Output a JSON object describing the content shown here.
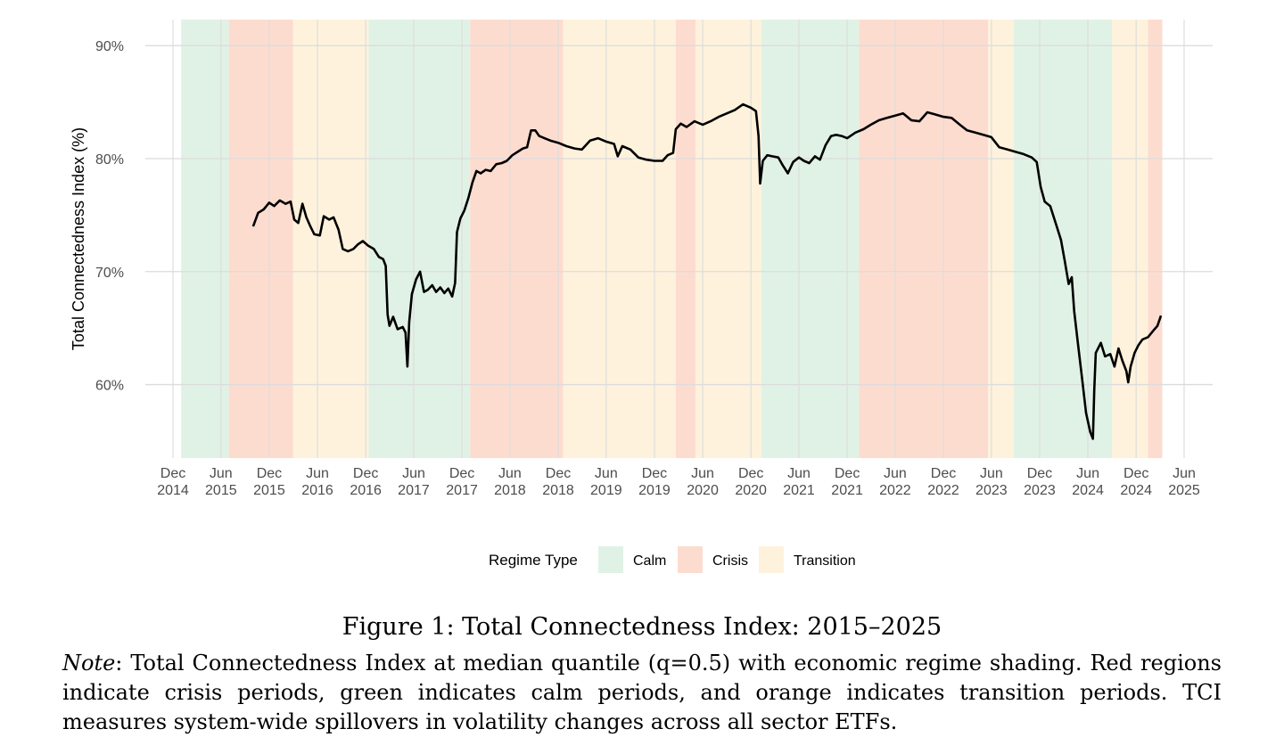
{
  "chart_data": {
    "type": "line",
    "title": "",
    "xlabel": "",
    "ylabel": "Total Connectedness Index (%)",
    "ylim": [
      53.5,
      92.3
    ],
    "x_range": [
      "2014-12-01",
      "2025-06-01"
    ],
    "y_ticks": [
      {
        "value": 60,
        "label": "60%"
      },
      {
        "value": 70,
        "label": "70%"
      },
      {
        "value": 80,
        "label": "80%"
      },
      {
        "value": 90,
        "label": "90%"
      }
    ],
    "x_ticks": [
      {
        "date": "2014-12-01",
        "line1": "Dec",
        "line2": "2014"
      },
      {
        "date": "2015-06-01",
        "line1": "Jun",
        "line2": "2015"
      },
      {
        "date": "2015-12-01",
        "line1": "Dec",
        "line2": "2015"
      },
      {
        "date": "2016-06-01",
        "line1": "Jun",
        "line2": "2016"
      },
      {
        "date": "2016-12-01",
        "line1": "Dec",
        "line2": "2016"
      },
      {
        "date": "2017-06-01",
        "line1": "Jun",
        "line2": "2017"
      },
      {
        "date": "2017-12-01",
        "line1": "Dec",
        "line2": "2017"
      },
      {
        "date": "2018-06-01",
        "line1": "Jun",
        "line2": "2018"
      },
      {
        "date": "2018-12-01",
        "line1": "Dec",
        "line2": "2018"
      },
      {
        "date": "2019-06-01",
        "line1": "Jun",
        "line2": "2019"
      },
      {
        "date": "2019-12-01",
        "line1": "Dec",
        "line2": "2019"
      },
      {
        "date": "2020-06-01",
        "line1": "Jun",
        "line2": "2020"
      },
      {
        "date": "2020-12-01",
        "line1": "Dec",
        "line2": "2020"
      },
      {
        "date": "2021-06-01",
        "line1": "Jun",
        "line2": "2021"
      },
      {
        "date": "2021-12-01",
        "line1": "Dec",
        "line2": "2021"
      },
      {
        "date": "2022-06-01",
        "line1": "Jun",
        "line2": "2022"
      },
      {
        "date": "2022-12-01",
        "line1": "Dec",
        "line2": "2022"
      },
      {
        "date": "2023-06-01",
        "line1": "Jun",
        "line2": "2023"
      },
      {
        "date": "2023-12-01",
        "line1": "Dec",
        "line2": "2023"
      },
      {
        "date": "2024-06-01",
        "line1": "Jun",
        "line2": "2024"
      },
      {
        "date": "2024-12-01",
        "line1": "Dec",
        "line2": "2024"
      },
      {
        "date": "2025-06-01",
        "line1": "Jun",
        "line2": "2025"
      }
    ],
    "grid": true,
    "regime_colors": {
      "Calm": "#e0f2e5",
      "Crisis": "#fddcd0",
      "Transition": "#fef2dc"
    },
    "regimes": [
      {
        "type": "Calm",
        "start": "2015-01-01",
        "end": "2015-07-01"
      },
      {
        "type": "Crisis",
        "start": "2015-07-01",
        "end": "2016-03-01"
      },
      {
        "type": "Transition",
        "start": "2016-03-01",
        "end": "2016-12-12"
      },
      {
        "type": "Calm",
        "start": "2016-12-12",
        "end": "2018-01-01"
      },
      {
        "type": "Crisis",
        "start": "2018-01-01",
        "end": "2018-12-20"
      },
      {
        "type": "Transition",
        "start": "2018-12-20",
        "end": "2020-02-20"
      },
      {
        "type": "Crisis",
        "start": "2020-02-20",
        "end": "2020-05-05"
      },
      {
        "type": "Transition",
        "start": "2020-05-05",
        "end": "2021-01-10"
      },
      {
        "type": "Calm",
        "start": "2021-01-10",
        "end": "2022-01-15"
      },
      {
        "type": "Crisis",
        "start": "2022-01-15",
        "end": "2023-05-20"
      },
      {
        "type": "Transition",
        "start": "2023-05-20",
        "end": "2023-08-25"
      },
      {
        "type": "Calm",
        "start": "2023-08-25",
        "end": "2024-09-01"
      },
      {
        "type": "Transition",
        "start": "2024-09-01",
        "end": "2025-01-15"
      },
      {
        "type": "Crisis",
        "start": "2025-01-15",
        "end": "2025-03-10"
      }
    ],
    "series": [
      {
        "name": "TCI",
        "color": "#000000",
        "points": [
          [
            "2015-10-01",
            74.0
          ],
          [
            "2015-10-20",
            75.2
          ],
          [
            "2015-11-10",
            75.5
          ],
          [
            "2015-12-01",
            76.1
          ],
          [
            "2015-12-20",
            75.8
          ],
          [
            "2016-01-10",
            76.3
          ],
          [
            "2016-02-01",
            76.0
          ],
          [
            "2016-02-20",
            76.2
          ],
          [
            "2016-03-05",
            74.6
          ],
          [
            "2016-03-20",
            74.3
          ],
          [
            "2016-04-05",
            76.0
          ],
          [
            "2016-04-20",
            74.8
          ],
          [
            "2016-05-05",
            74.0
          ],
          [
            "2016-05-20",
            73.3
          ],
          [
            "2016-06-10",
            73.2
          ],
          [
            "2016-06-25",
            74.9
          ],
          [
            "2016-07-15",
            74.6
          ],
          [
            "2016-08-01",
            74.8
          ],
          [
            "2016-08-20",
            73.7
          ],
          [
            "2016-09-05",
            72.0
          ],
          [
            "2016-09-25",
            71.8
          ],
          [
            "2016-10-15",
            72.0
          ],
          [
            "2016-11-01",
            72.4
          ],
          [
            "2016-11-20",
            72.7
          ],
          [
            "2016-12-10",
            72.3
          ],
          [
            "2017-01-01",
            72.0
          ],
          [
            "2017-01-20",
            71.3
          ],
          [
            "2017-02-05",
            71.1
          ],
          [
            "2017-02-15",
            70.5
          ],
          [
            "2017-02-22",
            66.2
          ],
          [
            "2017-03-01",
            65.2
          ],
          [
            "2017-03-15",
            66.0
          ],
          [
            "2017-04-01",
            64.9
          ],
          [
            "2017-04-20",
            65.1
          ],
          [
            "2017-05-01",
            64.6
          ],
          [
            "2017-05-08",
            61.6
          ],
          [
            "2017-05-15",
            65.5
          ],
          [
            "2017-05-25",
            68.0
          ],
          [
            "2017-06-10",
            69.3
          ],
          [
            "2017-06-25",
            70.0
          ],
          [
            "2017-07-10",
            68.2
          ],
          [
            "2017-07-25",
            68.4
          ],
          [
            "2017-08-10",
            68.8
          ],
          [
            "2017-08-25",
            68.2
          ],
          [
            "2017-09-10",
            68.6
          ],
          [
            "2017-09-25",
            68.1
          ],
          [
            "2017-10-10",
            68.5
          ],
          [
            "2017-10-25",
            67.8
          ],
          [
            "2017-11-05",
            69.0
          ],
          [
            "2017-11-12",
            73.5
          ],
          [
            "2017-11-25",
            74.7
          ],
          [
            "2017-12-10",
            75.4
          ],
          [
            "2017-12-25",
            76.5
          ],
          [
            "2018-01-10",
            77.9
          ],
          [
            "2018-01-25",
            78.9
          ],
          [
            "2018-02-10",
            78.7
          ],
          [
            "2018-03-01",
            79.0
          ],
          [
            "2018-03-20",
            78.9
          ],
          [
            "2018-04-10",
            79.5
          ],
          [
            "2018-05-01",
            79.6
          ],
          [
            "2018-05-20",
            79.8
          ],
          [
            "2018-06-10",
            80.3
          ],
          [
            "2018-06-30",
            80.6
          ],
          [
            "2018-07-20",
            80.9
          ],
          [
            "2018-08-05",
            81.0
          ],
          [
            "2018-08-20",
            82.5
          ],
          [
            "2018-09-05",
            82.5
          ],
          [
            "2018-09-20",
            82.0
          ],
          [
            "2018-10-10",
            81.8
          ],
          [
            "2018-11-01",
            81.6
          ],
          [
            "2018-12-01",
            81.4
          ],
          [
            "2019-01-01",
            81.1
          ],
          [
            "2019-02-01",
            80.9
          ],
          [
            "2019-03-01",
            80.8
          ],
          [
            "2019-04-01",
            81.6
          ],
          [
            "2019-05-01",
            81.8
          ],
          [
            "2019-06-01",
            81.5
          ],
          [
            "2019-07-01",
            81.3
          ],
          [
            "2019-07-15",
            80.2
          ],
          [
            "2019-08-01",
            81.1
          ],
          [
            "2019-09-01",
            80.8
          ],
          [
            "2019-10-01",
            80.1
          ],
          [
            "2019-11-01",
            79.9
          ],
          [
            "2019-12-01",
            79.8
          ],
          [
            "2020-01-01",
            79.8
          ],
          [
            "2020-01-20",
            80.3
          ],
          [
            "2020-02-10",
            80.5
          ],
          [
            "2020-02-20",
            82.6
          ],
          [
            "2020-03-10",
            83.1
          ],
          [
            "2020-04-01",
            82.8
          ],
          [
            "2020-05-01",
            83.3
          ],
          [
            "2020-06-01",
            83.0
          ],
          [
            "2020-07-01",
            83.3
          ],
          [
            "2020-08-01",
            83.7
          ],
          [
            "2020-09-01",
            84.0
          ],
          [
            "2020-10-01",
            84.3
          ],
          [
            "2020-11-01",
            84.8
          ],
          [
            "2020-12-01",
            84.5
          ],
          [
            "2020-12-20",
            84.2
          ],
          [
            "2020-12-30",
            82.0
          ],
          [
            "2021-01-05",
            77.8
          ],
          [
            "2021-01-15",
            79.8
          ],
          [
            "2021-02-01",
            80.3
          ],
          [
            "2021-02-20",
            80.2
          ],
          [
            "2021-03-15",
            80.1
          ],
          [
            "2021-04-01",
            79.4
          ],
          [
            "2021-04-20",
            78.7
          ],
          [
            "2021-05-10",
            79.7
          ],
          [
            "2021-06-01",
            80.1
          ],
          [
            "2021-06-20",
            79.8
          ],
          [
            "2021-07-10",
            79.6
          ],
          [
            "2021-08-01",
            80.2
          ],
          [
            "2021-08-20",
            79.9
          ],
          [
            "2021-09-10",
            81.2
          ],
          [
            "2021-10-01",
            82.0
          ],
          [
            "2021-10-20",
            82.1
          ],
          [
            "2021-11-10",
            82.0
          ],
          [
            "2021-12-01",
            81.8
          ],
          [
            "2022-01-01",
            82.3
          ],
          [
            "2022-02-01",
            82.6
          ],
          [
            "2022-03-01",
            83.0
          ],
          [
            "2022-04-01",
            83.4
          ],
          [
            "2022-05-01",
            83.6
          ],
          [
            "2022-06-01",
            83.8
          ],
          [
            "2022-07-01",
            84.0
          ],
          [
            "2022-08-01",
            83.4
          ],
          [
            "2022-09-01",
            83.3
          ],
          [
            "2022-10-01",
            84.1
          ],
          [
            "2022-11-01",
            83.9
          ],
          [
            "2022-12-01",
            83.7
          ],
          [
            "2023-01-01",
            83.6
          ],
          [
            "2023-02-01",
            83.0
          ],
          [
            "2023-03-01",
            82.5
          ],
          [
            "2023-04-01",
            82.3
          ],
          [
            "2023-05-01",
            82.1
          ],
          [
            "2023-06-01",
            81.9
          ],
          [
            "2023-07-01",
            81.0
          ],
          [
            "2023-08-01",
            80.8
          ],
          [
            "2023-09-01",
            80.6
          ],
          [
            "2023-10-01",
            80.4
          ],
          [
            "2023-11-01",
            80.1
          ],
          [
            "2023-11-20",
            79.7
          ],
          [
            "2023-12-05",
            77.5
          ],
          [
            "2023-12-20",
            76.2
          ],
          [
            "2024-01-10",
            75.8
          ],
          [
            "2024-02-01",
            74.2
          ],
          [
            "2024-02-20",
            72.8
          ],
          [
            "2024-03-05",
            71.0
          ],
          [
            "2024-03-20",
            68.9
          ],
          [
            "2024-04-01",
            69.5
          ],
          [
            "2024-04-10",
            66.5
          ],
          [
            "2024-04-25",
            63.5
          ],
          [
            "2024-05-10",
            60.5
          ],
          [
            "2024-05-25",
            57.5
          ],
          [
            "2024-06-10",
            55.8
          ],
          [
            "2024-06-20",
            55.2
          ],
          [
            "2024-06-25",
            59.5
          ],
          [
            "2024-07-01",
            62.8
          ],
          [
            "2024-07-20",
            63.7
          ],
          [
            "2024-08-05",
            62.5
          ],
          [
            "2024-08-25",
            62.7
          ],
          [
            "2024-09-10",
            61.6
          ],
          [
            "2024-09-25",
            63.2
          ],
          [
            "2024-10-10",
            62.1
          ],
          [
            "2024-10-25",
            61.2
          ],
          [
            "2024-11-01",
            60.2
          ],
          [
            "2024-11-10",
            61.6
          ],
          [
            "2024-11-25",
            62.8
          ],
          [
            "2024-12-10",
            63.5
          ],
          [
            "2024-12-25",
            64.0
          ],
          [
            "2025-01-15",
            64.2
          ],
          [
            "2025-02-05",
            64.8
          ],
          [
            "2025-02-20",
            65.2
          ],
          [
            "2025-03-05",
            66.1
          ]
        ]
      }
    ],
    "legend": {
      "title": "Regime Type",
      "placement": "bottom",
      "items": [
        {
          "label": "Calm",
          "color": "#e0f2e5"
        },
        {
          "label": "Crisis",
          "color": "#fddcd0"
        },
        {
          "label": "Transition",
          "color": "#fef2dc"
        }
      ]
    }
  },
  "caption": {
    "text": "Figure 1: Total Connectedness Index: 2015–2025"
  },
  "note": {
    "label": "Note",
    "text": ": Total Connectedness Index at median quantile (q=0.5) with economic regime shading. Red regions indicate crisis periods, green indicates calm periods, and orange indicates transition periods. TCI measures system-wide spillovers in volatility changes across all sector ETFs."
  }
}
